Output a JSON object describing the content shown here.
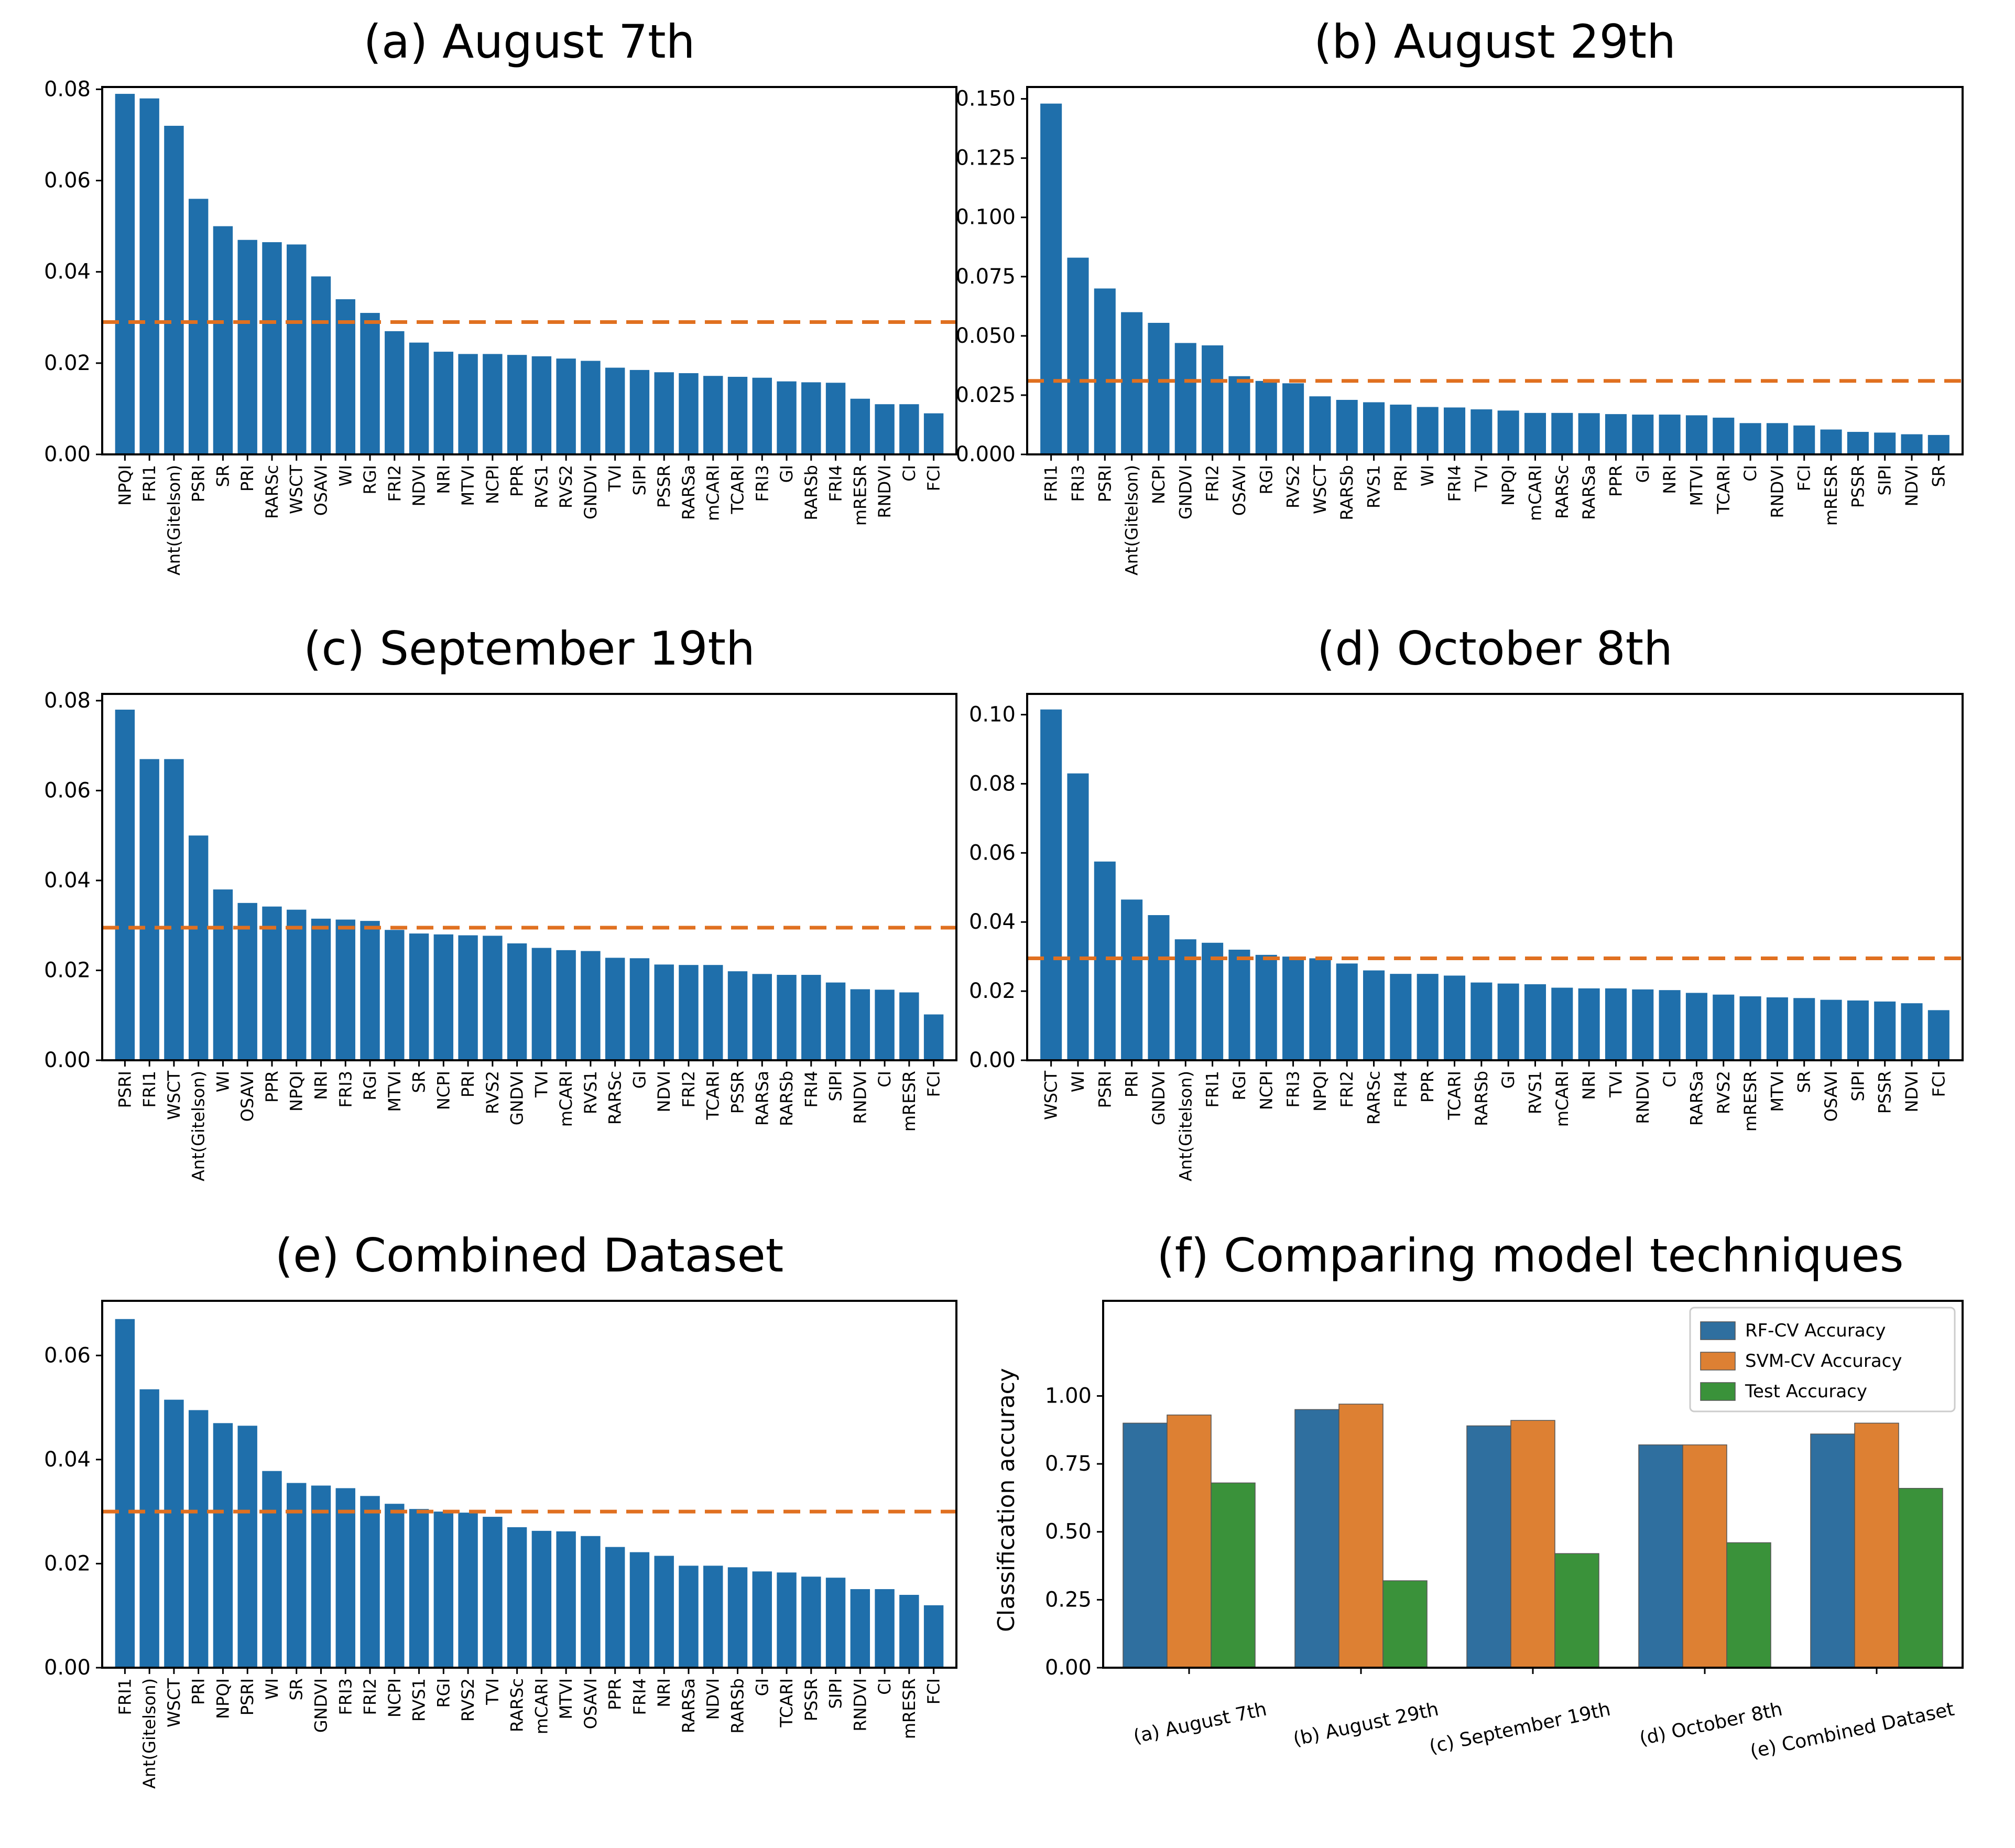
{
  "figure": {
    "name": "feature-importance-figure"
  },
  "colors": {
    "bar": "#1f6fab",
    "threshold": "#e07020",
    "rf": "#2f6f9f",
    "svm": "#dd8033",
    "test": "#3a923a"
  },
  "chart_data": [
    {
      "type": "bar",
      "title": "(a) August 7th",
      "categories": [
        "NPQI",
        "FRI1",
        "Ant(Gitelson)",
        "PSRI",
        "SR",
        "PRI",
        "RARSc",
        "WSCT",
        "OSAVI",
        "WI",
        "RGI",
        "FRI2",
        "NDVI",
        "NRI",
        "MTVI",
        "NCPI",
        "PPR",
        "RVS1",
        "RVS2",
        "GNDVI",
        "TVI",
        "SIPI",
        "PSSR",
        "RARSa",
        "mCARI",
        "TCARI",
        "FRI3",
        "GI",
        "RARSb",
        "FRI4",
        "mRESR",
        "RNDVI",
        "CI",
        "FCI"
      ],
      "values": [
        0.079,
        0.078,
        0.072,
        0.056,
        0.05,
        0.047,
        0.0465,
        0.046,
        0.039,
        0.034,
        0.031,
        0.027,
        0.0245,
        0.0225,
        0.022,
        0.022,
        0.0218,
        0.0215,
        0.021,
        0.0205,
        0.019,
        0.0185,
        0.018,
        0.0178,
        0.0172,
        0.017,
        0.0168,
        0.016,
        0.0158,
        0.0157,
        0.0122,
        0.011,
        0.011,
        0.009
      ],
      "threshold": 0.029,
      "ylim": [
        0,
        0.0805
      ],
      "yticks": [
        "0.00",
        "0.02",
        "0.04",
        "0.06",
        "0.08"
      ],
      "xlabel": "",
      "ylabel": ""
    },
    {
      "type": "bar",
      "title": "(b) August 29th",
      "categories": [
        "FRI1",
        "FRI3",
        "PSRI",
        "Ant(Gitelson)",
        "NCPI",
        "GNDVI",
        "FRI2",
        "OSAVI",
        "RGI",
        "RVS2",
        "WSCT",
        "RARSb",
        "RVS1",
        "PRI",
        "WI",
        "FRI4",
        "TVI",
        "NPQI",
        "mCARI",
        "RARSc",
        "RARSa",
        "PPR",
        "GI",
        "NRI",
        "MTVI",
        "TCARI",
        "CI",
        "RNDVI",
        "FCI",
        "mRESR",
        "PSSR",
        "SIPI",
        "NDVI",
        "SR"
      ],
      "values": [
        0.148,
        0.083,
        0.07,
        0.06,
        0.0555,
        0.047,
        0.046,
        0.033,
        0.031,
        0.03,
        0.0245,
        0.023,
        0.022,
        0.021,
        0.02,
        0.0198,
        0.019,
        0.0185,
        0.0175,
        0.0175,
        0.0174,
        0.017,
        0.0168,
        0.0168,
        0.0165,
        0.0155,
        0.0132,
        0.0132,
        0.0122,
        0.0105,
        0.0095,
        0.0092,
        0.0085,
        0.0082
      ],
      "threshold": 0.031,
      "ylim": [
        0,
        0.155
      ],
      "yticks": [
        "0.000",
        "0.025",
        "0.050",
        "0.075",
        "0.100",
        "0.125",
        "0.150"
      ],
      "xlabel": "",
      "ylabel": ""
    },
    {
      "type": "bar",
      "title": "(c) September 19th",
      "categories": [
        "PSRI",
        "FRI1",
        "WSCT",
        "Ant(Gitelson)",
        "WI",
        "OSAVI",
        "PPR",
        "NPQI",
        "NRI",
        "FRI3",
        "RGI",
        "MTVI",
        "SR",
        "NCPI",
        "PRI",
        "RVS2",
        "GNDVI",
        "TVI",
        "mCARI",
        "RVS1",
        "RARSc",
        "GI",
        "NDVI",
        "FRI2",
        "TCARI",
        "PSSR",
        "RARSa",
        "RARSb",
        "FRI4",
        "SIPI",
        "RNDVI",
        "CI",
        "mRESR",
        "FCI"
      ],
      "values": [
        0.078,
        0.067,
        0.067,
        0.05,
        0.038,
        0.035,
        0.0342,
        0.0335,
        0.0315,
        0.0313,
        0.031,
        0.029,
        0.0282,
        0.028,
        0.0278,
        0.0277,
        0.026,
        0.025,
        0.0245,
        0.0243,
        0.0228,
        0.0227,
        0.0213,
        0.0212,
        0.0212,
        0.0198,
        0.0192,
        0.019,
        0.019,
        0.0173,
        0.0158,
        0.0157,
        0.0151,
        0.0102
      ],
      "threshold": 0.0295,
      "ylim": [
        0,
        0.0815
      ],
      "yticks": [
        "0.00",
        "0.02",
        "0.04",
        "0.06",
        "0.08"
      ],
      "xlabel": "",
      "ylabel": ""
    },
    {
      "type": "bar",
      "title": "(d) October 8th",
      "categories": [
        "WSCT",
        "WI",
        "PSRI",
        "PRI",
        "GNDVI",
        "Ant(Gitelson)",
        "FRI1",
        "RGI",
        "NCPI",
        "FRI3",
        "NPQI",
        "FRI2",
        "RARSc",
        "FRI4",
        "PPR",
        "TCARI",
        "RARSb",
        "GI",
        "RVS1",
        "mCARI",
        "NRI",
        "TVI",
        "RNDVI",
        "CI",
        "RARSa",
        "RVS2",
        "mRESR",
        "MTVI",
        "SR",
        "OSAVI",
        "SIPI",
        "PSSR",
        "NDVI",
        "FCI"
      ],
      "values": [
        0.1015,
        0.083,
        0.0575,
        0.0465,
        0.042,
        0.035,
        0.034,
        0.032,
        0.0305,
        0.03,
        0.0295,
        0.028,
        0.026,
        0.025,
        0.025,
        0.0245,
        0.0225,
        0.0222,
        0.022,
        0.021,
        0.0208,
        0.0208,
        0.0205,
        0.0203,
        0.0195,
        0.019,
        0.0185,
        0.0182,
        0.018,
        0.0175,
        0.0173,
        0.017,
        0.0165,
        0.0145
      ],
      "threshold": 0.0295,
      "ylim": [
        0,
        0.106
      ],
      "yticks": [
        "0.00",
        "0.02",
        "0.04",
        "0.06",
        "0.08",
        "0.10"
      ],
      "xlabel": "",
      "ylabel": ""
    },
    {
      "type": "bar",
      "title": "(e) Combined Dataset",
      "categories": [
        "FRI1",
        "Ant(Gitelson)",
        "WSCT",
        "PRI",
        "NPQI",
        "PSRI",
        "WI",
        "SR",
        "GNDVI",
        "FRI3",
        "FRI2",
        "NCPI",
        "RVS1",
        "RGI",
        "RVS2",
        "TVI",
        "RARSc",
        "mCARI",
        "MTVI",
        "OSAVI",
        "PPR",
        "FRI4",
        "NRI",
        "RARSa",
        "NDVI",
        "RARSb",
        "GI",
        "TCARI",
        "PSSR",
        "SIPI",
        "RNDVI",
        "CI",
        "mRESR",
        "FCI"
      ],
      "values": [
        0.067,
        0.0535,
        0.0515,
        0.0495,
        0.047,
        0.0465,
        0.0378,
        0.0355,
        0.035,
        0.0345,
        0.033,
        0.0315,
        0.0305,
        0.03,
        0.0298,
        0.029,
        0.027,
        0.0263,
        0.0262,
        0.0253,
        0.0232,
        0.0222,
        0.0215,
        0.0196,
        0.0196,
        0.0193,
        0.0185,
        0.0183,
        0.0175,
        0.0173,
        0.0151,
        0.0151,
        0.014,
        0.012
      ],
      "threshold": 0.03,
      "ylim": [
        0,
        0.0705
      ],
      "yticks": [
        "0.00",
        "0.02",
        "0.04",
        "0.06"
      ],
      "xlabel": "",
      "ylabel": ""
    },
    {
      "type": "bar",
      "title": "(f) Comparing model techniques",
      "categories": [
        "(a) August 7th",
        "(b) August 29th",
        "(c) September 19th",
        "(d) October 8th",
        "(e) Combined Dataset"
      ],
      "series": [
        {
          "name": "RF-CV Accuracy",
          "values": [
            0.9,
            0.95,
            0.89,
            0.82,
            0.86
          ]
        },
        {
          "name": "SVM-CV Accuracy",
          "values": [
            0.93,
            0.97,
            0.91,
            0.82,
            0.9
          ]
        },
        {
          "name": "Test Accuracy",
          "values": [
            0.68,
            0.32,
            0.42,
            0.46,
            0.66
          ]
        }
      ],
      "ylim": [
        0,
        1.35
      ],
      "yticks": [
        "0.00",
        "0.25",
        "0.50",
        "0.75",
        "1.00"
      ],
      "xlabel": "",
      "ylabel": "Classification accuracy",
      "legend": "top-right"
    }
  ]
}
